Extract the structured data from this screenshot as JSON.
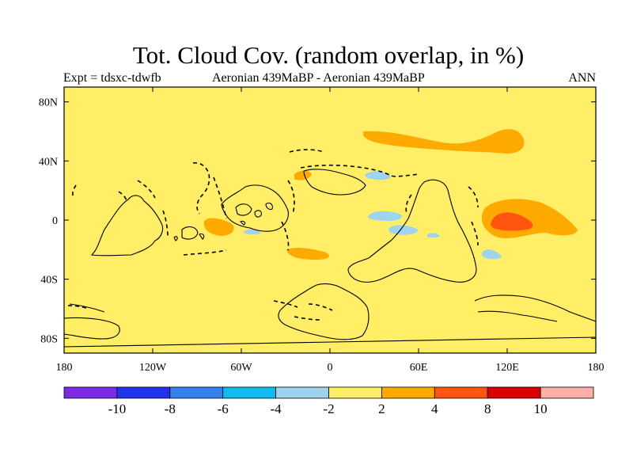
{
  "title": "Tot. Cloud Cov. (random overlap, in %)",
  "expt": "Expt = tdsxc-tdwfb",
  "subtitle": "Aeronian 439MaBP - Aeronian 439MaBP",
  "season": "ANN",
  "map": {
    "background_color": "#ffee66",
    "lon_range": [
      -180,
      180
    ],
    "lat_range": [
      -90,
      90
    ],
    "x_ticks": [
      {
        "lon": -180,
        "label": "180"
      },
      {
        "lon": -120,
        "label": "120W"
      },
      {
        "lon": -60,
        "label": "60W"
      },
      {
        "lon": 0,
        "label": "0"
      },
      {
        "lon": 60,
        "label": "60E"
      },
      {
        "lon": 120,
        "label": "120E"
      },
      {
        "lon": 180,
        "label": "180"
      }
    ],
    "y_ticks": [
      {
        "lat": 80,
        "label": "80N"
      },
      {
        "lat": 40,
        "label": "40N"
      },
      {
        "lat": 0,
        "label": "0"
      },
      {
        "lat": -40,
        "label": "40S"
      },
      {
        "lat": -80,
        "label": "80S"
      }
    ]
  },
  "colorbar": {
    "colors": [
      "#7b2be6",
      "#2233ee",
      "#3380ee",
      "#11bbf0",
      "#9ed4ef",
      "#ffee66",
      "#ffaa00",
      "#ff5511",
      "#dd0000",
      "#ffb0a8"
    ],
    "labels": [
      "-10",
      "-8",
      "-6",
      "-4",
      "-2",
      "2",
      "4",
      "8",
      "10"
    ]
  }
}
